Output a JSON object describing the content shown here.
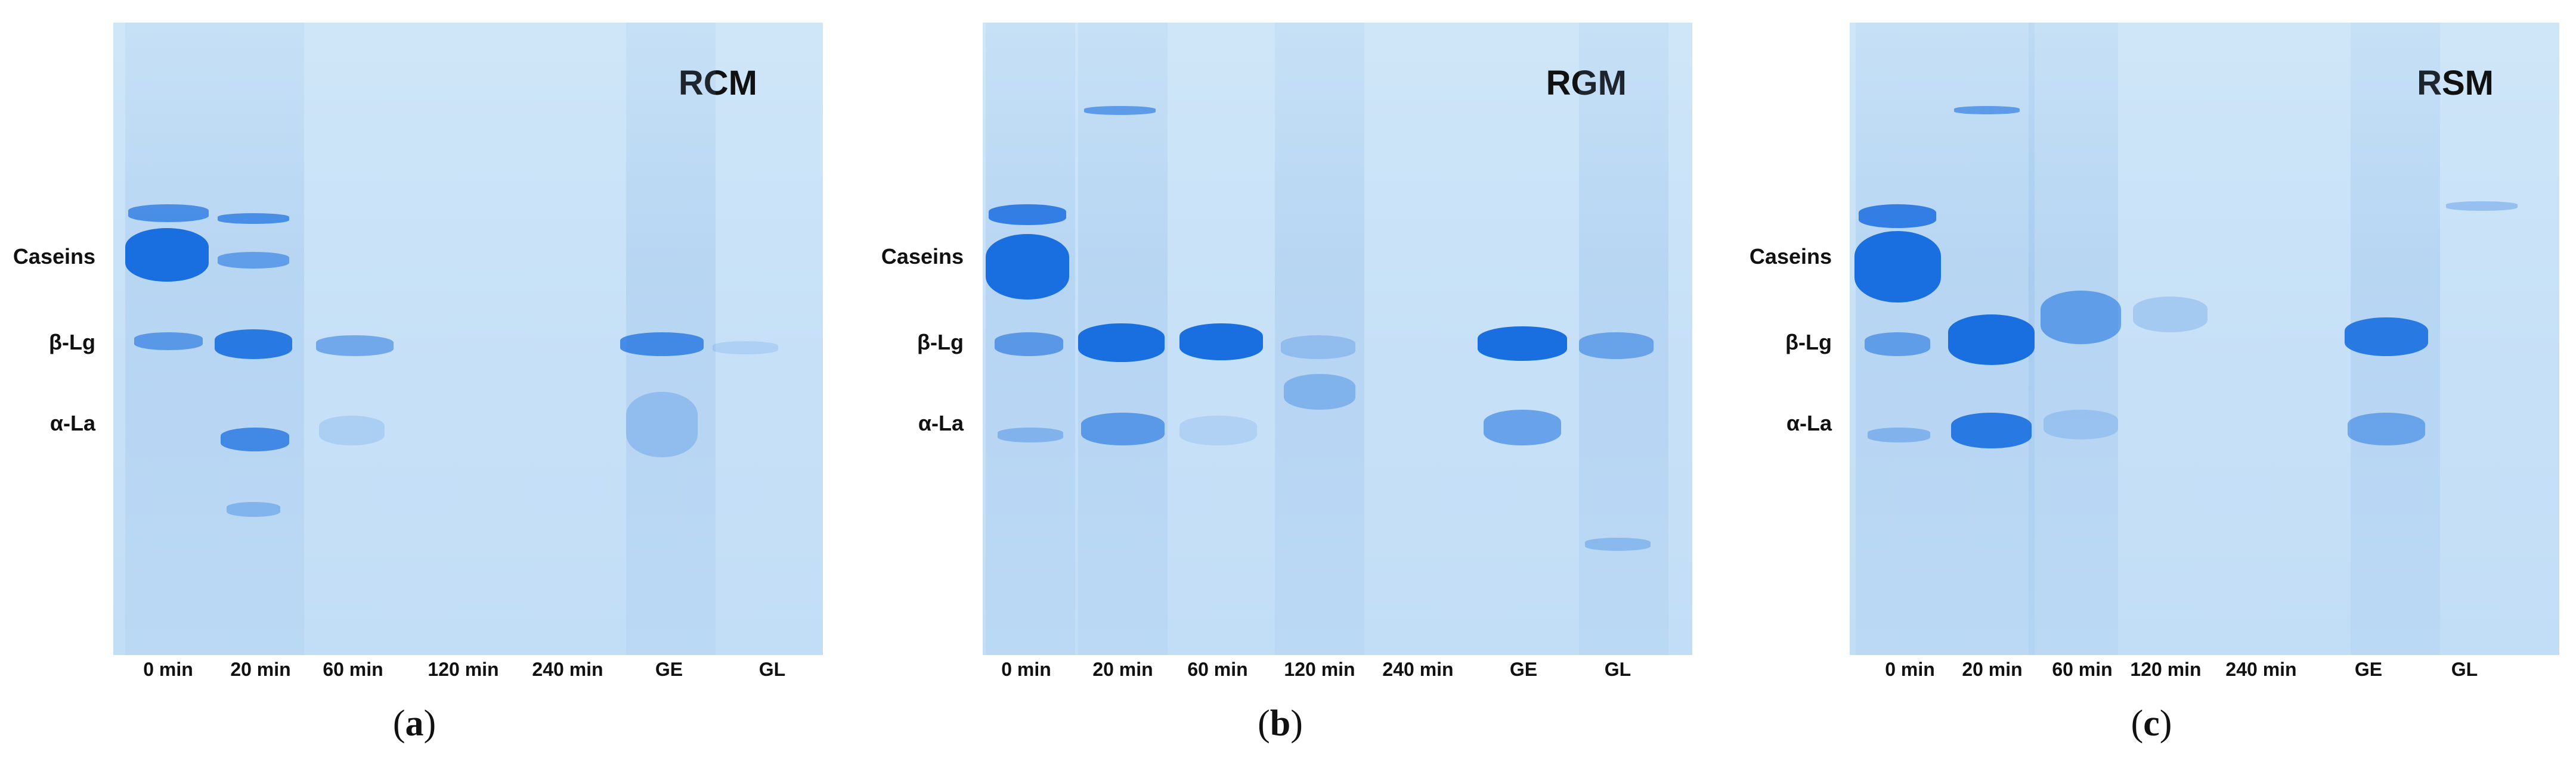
{
  "markers": [
    "Caseins",
    "β-Lg",
    "α-La"
  ],
  "lanes": [
    "0 min",
    "20 min",
    "60 min",
    "120 min",
    "240 min",
    "GE",
    "GL"
  ],
  "panels": [
    {
      "gel_label": "RCM",
      "caption_letter": "a"
    },
    {
      "gel_label": "RGM",
      "caption_letter": "b"
    },
    {
      "gel_label": "RSM",
      "caption_letter": "c"
    }
  ],
  "colors": {
    "gel_background": "#c8e1f7",
    "band": "#1a6fe0"
  }
}
